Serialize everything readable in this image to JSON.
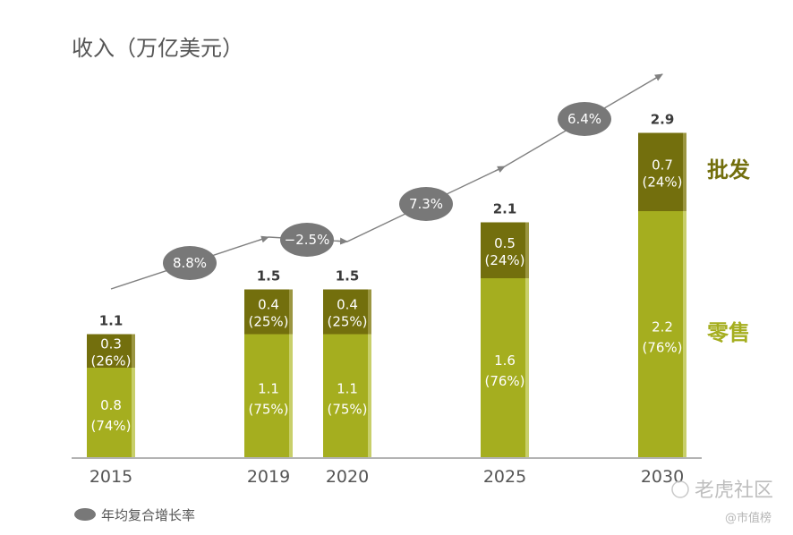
{
  "colors": {
    "retail": "#a5ae1f",
    "retail_shadow": "#c8cf6a",
    "wholesale": "#736f0d",
    "wholesale_shadow": "#9b9641",
    "cagr_bubble": "#787878",
    "arrow": "#808080",
    "axis": "#9a9a9a"
  },
  "chart_data": {
    "type": "bar",
    "stacked": true,
    "title": "收入（万亿美元）",
    "categories": [
      "2015",
      "2019",
      "2020",
      "2025",
      "2030"
    ],
    "ylim": [
      0,
      3.2
    ],
    "grid": false,
    "series": [
      {
        "name": "零售",
        "values": [
          0.8,
          1.1,
          1.1,
          1.6,
          2.2
        ],
        "labels": [
          "0.8",
          "1.1",
          "1.1",
          "1.6",
          "2.2"
        ],
        "shares": [
          "(74%)",
          "(75%)",
          "(75%)",
          "(76%)",
          "(76%)"
        ]
      },
      {
        "name": "批发",
        "values": [
          0.3,
          0.4,
          0.4,
          0.5,
          0.7
        ],
        "labels": [
          "0.3",
          "0.4",
          "0.4",
          "0.5",
          "0.7"
        ],
        "shares": [
          "(26%)",
          "(25%)",
          "(25%)",
          "(24%)",
          "(24%)"
        ]
      }
    ],
    "totals": [
      "1.1",
      "1.5",
      "1.5",
      "2.1",
      "2.9"
    ],
    "cagr": [
      {
        "between": [
          "2015",
          "2019"
        ],
        "label": "8.8%"
      },
      {
        "between": [
          "2019",
          "2020"
        ],
        "label": "−2.5%"
      },
      {
        "between": [
          "2020",
          "2025"
        ],
        "label": "7.3%"
      },
      {
        "between": [
          "2025",
          "2030"
        ],
        "label": "6.4%"
      }
    ],
    "legend": {
      "label": "年均复合增长率",
      "position": "bottom-left"
    }
  },
  "watermark": {
    "main": "老虎社区",
    "sub": "@市值榜"
  }
}
